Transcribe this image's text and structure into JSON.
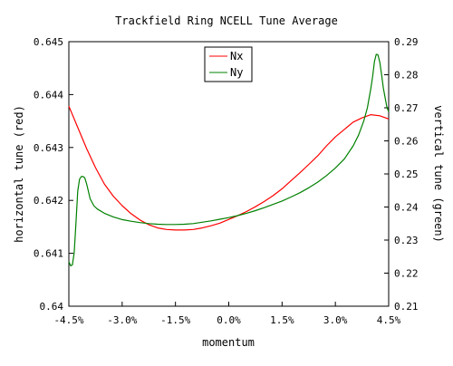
{
  "chart_data": {
    "type": "line",
    "title": "Trackfield Ring NCELL Tune Average",
    "xlabel": "momentum",
    "ylabel_left": "horizontal tune (red)",
    "ylabel_right": "vertical tune (green)",
    "xlim": [
      -0.045,
      0.045
    ],
    "ylim_left": [
      0.64,
      0.645
    ],
    "ylim_right": [
      0.21,
      0.29
    ],
    "x_ticks": [
      -0.045,
      -0.03,
      -0.015,
      0.0,
      0.015,
      0.03,
      0.045
    ],
    "x_tick_labels": [
      "-4.5%",
      "-3.0%",
      "-1.5%",
      "0.0%",
      "1.5%",
      "3.0%",
      "4.5%"
    ],
    "y_left_ticks": [
      0.64,
      0.641,
      0.642,
      0.643,
      0.644,
      0.645
    ],
    "y_left_tick_labels": [
      "0.64",
      "0.641",
      "0.642",
      "0.643",
      "0.644",
      "0.645"
    ],
    "y_right_ticks": [
      0.21,
      0.22,
      0.23,
      0.24,
      0.25,
      0.26,
      0.27,
      0.28,
      0.29
    ],
    "y_right_tick_labels": [
      "0.21",
      "0.22",
      "0.23",
      "0.24",
      "0.25",
      "0.26",
      "0.27",
      "0.28",
      "0.29"
    ],
    "grid": false,
    "legend_position": "top-center",
    "series": [
      {
        "name": "Nx",
        "axis": "left",
        "color": "#ff0000",
        "x": [
          -0.045,
          -0.0425,
          -0.04,
          -0.0375,
          -0.035,
          -0.0325,
          -0.03,
          -0.0275,
          -0.025,
          -0.0225,
          -0.02,
          -0.0175,
          -0.015,
          -0.0125,
          -0.01,
          -0.0075,
          -0.005,
          -0.0025,
          0.0,
          0.0025,
          0.005,
          0.0075,
          0.01,
          0.0125,
          0.015,
          0.0175,
          0.02,
          0.0225,
          0.025,
          0.0275,
          0.03,
          0.0325,
          0.035,
          0.0375,
          0.04,
          0.0425,
          0.045
        ],
        "values": [
          0.64378,
          0.64338,
          0.64298,
          0.64262,
          0.64231,
          0.64208,
          0.6419,
          0.64175,
          0.64163,
          0.64154,
          0.64148,
          0.64145,
          0.64144,
          0.64144,
          0.64145,
          0.64148,
          0.64152,
          0.64157,
          0.64164,
          0.64171,
          0.64179,
          0.64188,
          0.64198,
          0.64209,
          0.64222,
          0.64237,
          0.64252,
          0.64268,
          0.64284,
          0.64303,
          0.6432,
          0.64334,
          0.64348,
          0.64356,
          0.64362,
          0.6436,
          0.64354
        ]
      },
      {
        "name": "Ny",
        "axis": "right",
        "color": "#008000",
        "x": [
          -0.045,
          -0.0445,
          -0.044,
          -0.0435,
          -0.043,
          -0.0425,
          -0.042,
          -0.0415,
          -0.041,
          -0.0405,
          -0.04,
          -0.039,
          -0.038,
          -0.037,
          -0.035,
          -0.0325,
          -0.03,
          -0.0275,
          -0.025,
          -0.0225,
          -0.02,
          -0.0175,
          -0.015,
          -0.0125,
          -0.01,
          -0.0075,
          -0.005,
          -0.0025,
          0.0,
          0.0025,
          0.005,
          0.0075,
          0.01,
          0.0125,
          0.015,
          0.0175,
          0.02,
          0.0225,
          0.025,
          0.0275,
          0.03,
          0.0325,
          0.035,
          0.0365,
          0.038,
          0.039,
          0.04,
          0.0405,
          0.041,
          0.0415,
          0.042,
          0.0425,
          0.043,
          0.0435,
          0.044,
          0.0445,
          0.045
        ],
        "values": [
          0.2235,
          0.2222,
          0.2225,
          0.2262,
          0.235,
          0.2448,
          0.2484,
          0.2492,
          0.2492,
          0.2488,
          0.247,
          0.2425,
          0.2404,
          0.2394,
          0.2381,
          0.237,
          0.2362,
          0.2357,
          0.2353,
          0.235,
          0.2348,
          0.2347,
          0.2347,
          0.2348,
          0.235,
          0.2354,
          0.2358,
          0.2363,
          0.2368,
          0.2374,
          0.2381,
          0.2389,
          0.2398,
          0.2408,
          0.2418,
          0.243,
          0.2443,
          0.2458,
          0.2475,
          0.2495,
          0.2518,
          0.2545,
          0.2585,
          0.2617,
          0.266,
          0.27,
          0.276,
          0.2795,
          0.284,
          0.2862,
          0.286,
          0.2838,
          0.28,
          0.276,
          0.273,
          0.2702,
          0.2688
        ]
      }
    ]
  }
}
